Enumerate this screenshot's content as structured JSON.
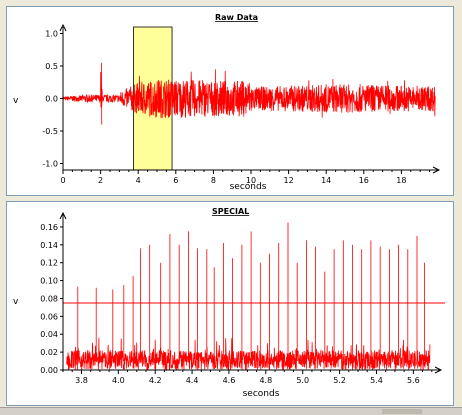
{
  "charts": {
    "raw": {
      "title": "Raw Data",
      "xlabel": "seconds",
      "ylabel": "v",
      "xticks": [
        "0",
        "2",
        "4",
        "6",
        "8",
        "10",
        "12",
        "14",
        "16",
        "18"
      ],
      "yticks": [
        "1.0",
        "0.5",
        "0.0",
        "-0.5",
        "-1.0"
      ]
    },
    "special": {
      "title": "SPECIAL",
      "xlabel": "seconds",
      "ylabel": "v",
      "xticks": [
        "3.8",
        "4.0",
        "4.2",
        "4.4",
        "4.6",
        "4.8",
        "5.0",
        "5.2",
        "5.4",
        "5.6"
      ],
      "yticks": [
        "0.16",
        "0.14",
        "0.12",
        "0.10",
        "0.08",
        "0.06",
        "0.04",
        "0.02",
        "0.00"
      ]
    }
  },
  "chart_data": [
    {
      "type": "line",
      "title": "Raw Data",
      "xlabel": "seconds",
      "ylabel": "v",
      "xlim": [
        0,
        20
      ],
      "ylim": [
        -1.1,
        1.1
      ],
      "highlight_region": {
        "x": [
          3.75,
          5.8
        ],
        "color": "#ffff99"
      },
      "series": [
        {
          "color": "#ff0000",
          "x": [
            0,
            1,
            2,
            2.05,
            2.1,
            3,
            4,
            5,
            6,
            8,
            10,
            10.1,
            12,
            14,
            16,
            18,
            20
          ],
          "envelope": [
            0.03,
            0.05,
            0.55,
            -0.45,
            0.05,
            0.1,
            0.25,
            0.3,
            0.3,
            0.28,
            0.28,
            0.18,
            0.2,
            0.22,
            0.22,
            0.2,
            0.2
          ]
        }
      ]
    },
    {
      "type": "line",
      "title": "SPECIAL",
      "xlabel": "seconds",
      "ylabel": "v",
      "xlim": [
        3.7,
        5.75
      ],
      "ylim": [
        0,
        0.17
      ],
      "threshold": 0.075,
      "series": [
        {
          "color": "#ff0000",
          "peaks_x": [
            3.78,
            3.88,
            3.97,
            4.03,
            4.08,
            4.12,
            4.17,
            4.23,
            4.28,
            4.33,
            4.38,
            4.43,
            4.48,
            4.52,
            4.57,
            4.62,
            4.67,
            4.72,
            4.77,
            4.82,
            4.87,
            4.92,
            4.97,
            5.02,
            5.07,
            5.12,
            5.17,
            5.22,
            5.27,
            5.32,
            5.37,
            5.42,
            5.47,
            5.52,
            5.57,
            5.62,
            5.66
          ],
          "peaks_y": [
            0.093,
            0.092,
            0.09,
            0.095,
            0.105,
            0.136,
            0.14,
            0.12,
            0.152,
            0.14,
            0.155,
            0.136,
            0.135,
            0.115,
            0.142,
            0.125,
            0.14,
            0.155,
            0.12,
            0.13,
            0.142,
            0.165,
            0.12,
            0.145,
            0.138,
            0.11,
            0.135,
            0.145,
            0.14,
            0.135,
            0.145,
            0.138,
            0.135,
            0.14,
            0.135,
            0.15,
            0.12
          ],
          "baseline": 0.015
        }
      ]
    }
  ]
}
